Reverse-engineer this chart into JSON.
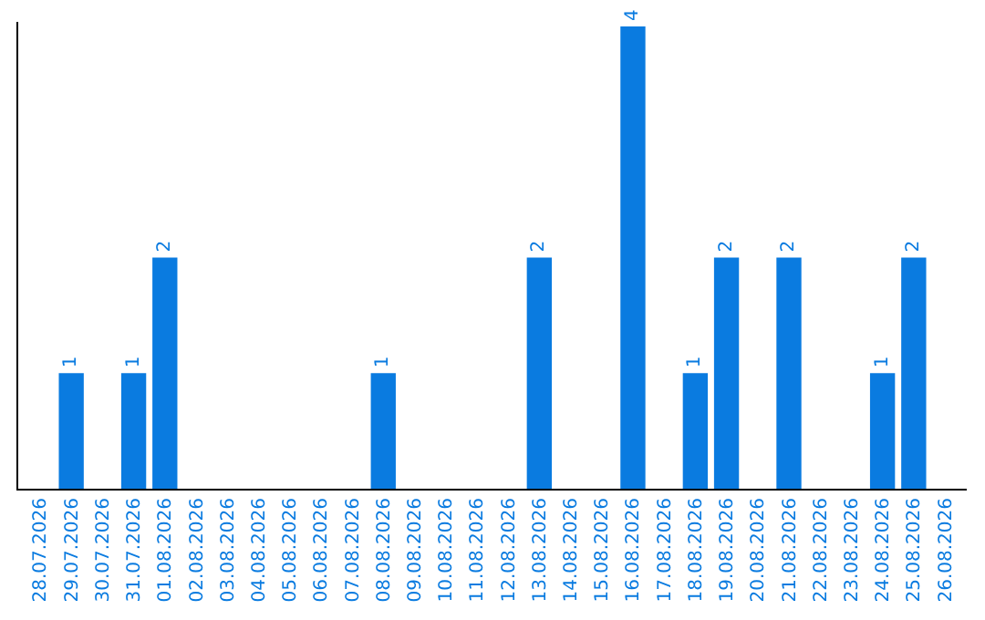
{
  "chart_data": {
    "type": "bar",
    "categories": [
      "28.07.2026",
      "29.07.2026",
      "30.07.2026",
      "31.07.2026",
      "01.08.2026",
      "02.08.2026",
      "03.08.2026",
      "04.08.2026",
      "05.08.2026",
      "06.08.2026",
      "07.08.2026",
      "08.08.2026",
      "09.08.2026",
      "10.08.2026",
      "11.08.2026",
      "12.08.2026",
      "13.08.2026",
      "14.08.2026",
      "15.08.2026",
      "16.08.2026",
      "17.08.2026",
      "18.08.2026",
      "19.08.2026",
      "20.08.2026",
      "21.08.2026",
      "22.08.2026",
      "23.08.2026",
      "24.08.2026",
      "25.08.2026",
      "26.08.2026"
    ],
    "values": [
      0,
      1,
      0,
      1,
      2,
      0,
      0,
      0,
      0,
      0,
      0,
      1,
      0,
      0,
      0,
      0,
      2,
      0,
      0,
      4,
      0,
      1,
      2,
      0,
      2,
      0,
      0,
      1,
      2,
      0
    ],
    "value_labels": [
      null,
      "1",
      null,
      "1",
      "2",
      null,
      null,
      null,
      null,
      null,
      null,
      "1",
      null,
      null,
      null,
      null,
      "2",
      null,
      null,
      "4",
      null,
      "1",
      "2",
      null,
      "2",
      null,
      null,
      "1",
      "2",
      null
    ],
    "color": "#0a7be0"
  }
}
